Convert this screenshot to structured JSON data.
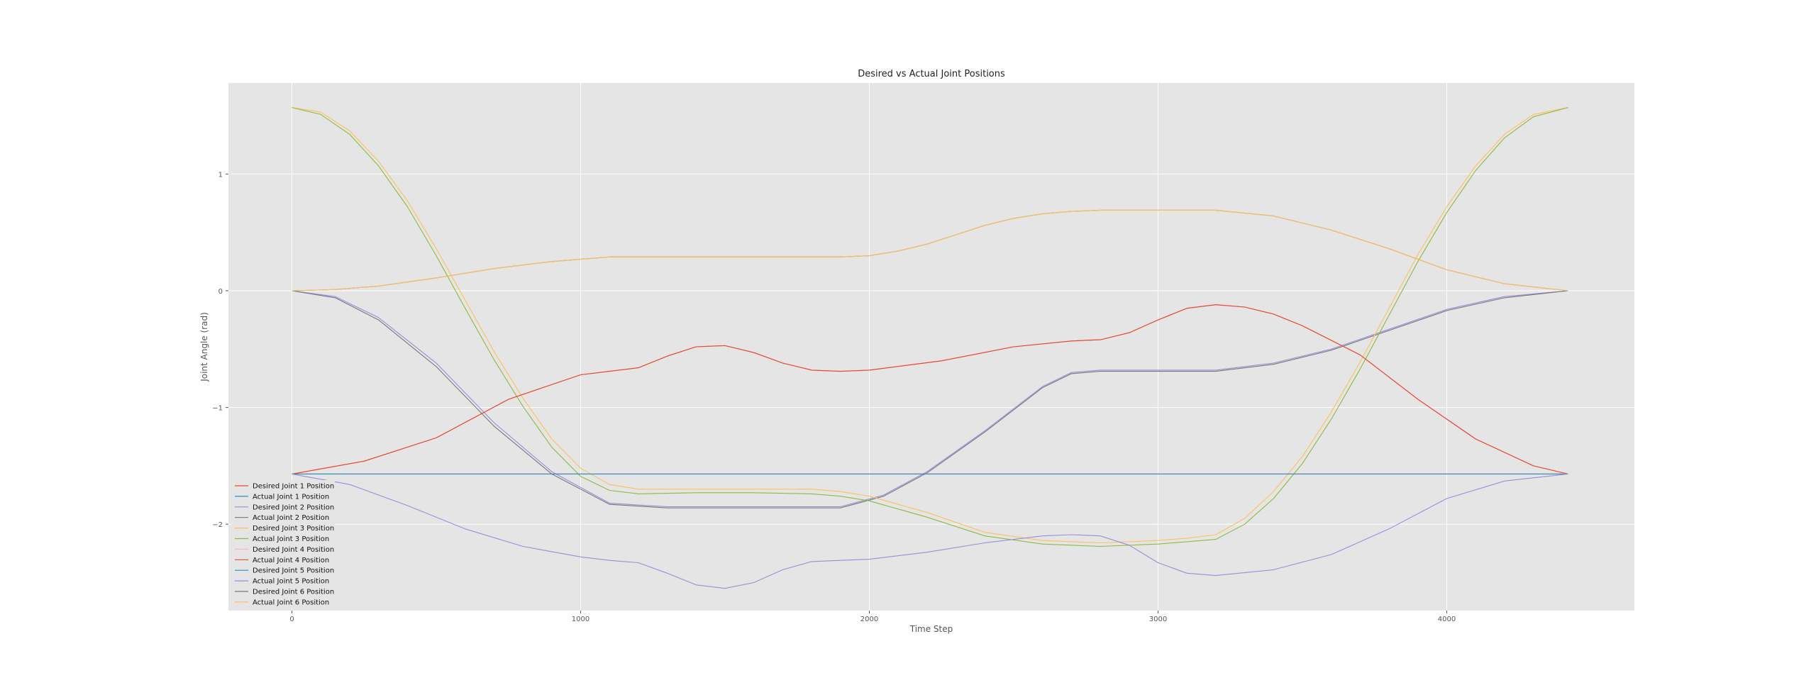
{
  "chart_data": {
    "type": "line",
    "title": "Desired vs Actual Joint Positions",
    "xlabel": "Time Step",
    "ylabel": "Joint Angle (rad)",
    "xlim": [
      -220,
      4650
    ],
    "ylim": [
      -2.74,
      1.78
    ],
    "xticks": [
      0,
      1000,
      2000,
      3000,
      4000
    ],
    "xtick_labels": [
      "0",
      "1000",
      "2000",
      "3000",
      "4000"
    ],
    "yticks": [
      -2,
      -1,
      0,
      1
    ],
    "ytick_labels": [
      "−2",
      "−1",
      "0",
      "1"
    ],
    "grid": true,
    "legend_position": "lower-left",
    "series": [
      {
        "name": "Desired Joint 1 Position",
        "color": "#E24A33",
        "width": 1.1,
        "x": [
          0,
          250,
          500,
          750,
          1000,
          1100,
          1200,
          1300,
          1400,
          1500,
          1600,
          1700,
          1800,
          1900,
          2000,
          2250,
          2500,
          2700,
          2800,
          2900,
          3000,
          3100,
          3200,
          3300,
          3400,
          3500,
          3700,
          3900,
          4100,
          4300,
          4420
        ],
        "y": [
          -1.57,
          -1.46,
          -1.26,
          -0.93,
          -0.72,
          -0.69,
          -0.66,
          -0.56,
          -0.48,
          -0.47,
          -0.53,
          -0.62,
          -0.68,
          -0.69,
          -0.68,
          -0.6,
          -0.48,
          -0.43,
          -0.42,
          -0.36,
          -0.25,
          -0.15,
          -0.12,
          -0.14,
          -0.2,
          -0.3,
          -0.55,
          -0.93,
          -1.27,
          -1.5,
          -1.57
        ]
      },
      {
        "name": "Actual Joint 1 Position",
        "color": "#348ABD",
        "width": 1.1,
        "x": [
          0,
          4420
        ],
        "y": [
          -1.57,
          -1.57
        ]
      },
      {
        "name": "Desired Joint 2 Position",
        "color": "#988ED5",
        "width": 1.1,
        "x": [
          0,
          150,
          300,
          500,
          700,
          900,
          1100,
          1300,
          1500,
          1700,
          1900,
          2050,
          2200,
          2400,
          2600,
          2700,
          2800,
          3000,
          3200,
          3400,
          3600,
          3800,
          4000,
          4200,
          4420
        ],
        "y": [
          0.0,
          -0.05,
          -0.23,
          -0.62,
          -1.13,
          -1.55,
          -1.82,
          -1.85,
          -1.85,
          -1.85,
          -1.85,
          -1.75,
          -1.55,
          -1.2,
          -0.82,
          -0.7,
          -0.68,
          -0.68,
          -0.68,
          -0.62,
          -0.5,
          -0.33,
          -0.16,
          -0.05,
          0.0
        ]
      },
      {
        "name": "Actual Joint 2 Position",
        "color": "#777777",
        "width": 1.1,
        "x": [
          0,
          150,
          300,
          500,
          700,
          900,
          1100,
          1300,
          1500,
          1700,
          1900,
          2050,
          2200,
          2400,
          2600,
          2700,
          2800,
          3000,
          3200,
          3400,
          3600,
          3800,
          4000,
          4200,
          4420
        ],
        "y": [
          0.0,
          -0.06,
          -0.25,
          -0.65,
          -1.16,
          -1.57,
          -1.83,
          -1.86,
          -1.86,
          -1.86,
          -1.86,
          -1.76,
          -1.56,
          -1.21,
          -0.83,
          -0.71,
          -0.69,
          -0.69,
          -0.69,
          -0.63,
          -0.51,
          -0.34,
          -0.17,
          -0.06,
          0.0
        ]
      },
      {
        "name": "Desired Joint 3 Position",
        "color": "#FBC15E",
        "width": 1.1,
        "x": [
          0,
          100,
          200,
          300,
          400,
          500,
          600,
          700,
          800,
          900,
          1000,
          1100,
          1200,
          1400,
          1600,
          1800,
          1900,
          2000,
          2200,
          2400,
          2600,
          2800,
          3000,
          3100,
          3200,
          3300,
          3400,
          3500,
          3600,
          3700,
          3800,
          3900,
          4000,
          4100,
          4200,
          4300,
          4420
        ],
        "y": [
          1.57,
          1.53,
          1.37,
          1.11,
          0.77,
          0.36,
          -0.08,
          -0.52,
          -0.92,
          -1.27,
          -1.52,
          -1.66,
          -1.7,
          -1.7,
          -1.7,
          -1.7,
          -1.72,
          -1.76,
          -1.9,
          -2.07,
          -2.14,
          -2.16,
          -2.14,
          -2.12,
          -2.09,
          -1.95,
          -1.72,
          -1.42,
          -1.04,
          -0.61,
          -0.15,
          0.31,
          0.72,
          1.07,
          1.34,
          1.51,
          1.57
        ]
      },
      {
        "name": "Actual Joint 3 Position",
        "color": "#8EBA42",
        "width": 1.1,
        "x": [
          0,
          100,
          200,
          300,
          400,
          500,
          600,
          700,
          800,
          900,
          1000,
          1100,
          1200,
          1400,
          1600,
          1800,
          1900,
          2000,
          2200,
          2400,
          2600,
          2800,
          3000,
          3100,
          3200,
          3300,
          3400,
          3500,
          3600,
          3700,
          3800,
          3900,
          4000,
          4100,
          4200,
          4300,
          4420
        ],
        "y": [
          1.57,
          1.51,
          1.34,
          1.07,
          0.72,
          0.3,
          -0.15,
          -0.59,
          -0.99,
          -1.34,
          -1.59,
          -1.71,
          -1.74,
          -1.73,
          -1.73,
          -1.74,
          -1.76,
          -1.8,
          -1.94,
          -2.1,
          -2.17,
          -2.19,
          -2.17,
          -2.15,
          -2.13,
          -2.0,
          -1.78,
          -1.48,
          -1.1,
          -0.67,
          -0.21,
          0.25,
          0.67,
          1.03,
          1.31,
          1.49,
          1.57
        ]
      },
      {
        "name": "Desired Joint 4 Position",
        "color": "#FFB5B8",
        "width": 1.1,
        "x": [
          0,
          250,
          500,
          750,
          1000,
          1100,
          1200,
          1300,
          1400,
          1500,
          1600,
          1700,
          1800,
          1900,
          2000,
          2250,
          2500,
          2700,
          2800,
          2900,
          3000,
          3100,
          3200,
          3300,
          3400,
          3500,
          3700,
          3900,
          4100,
          4300,
          4420
        ],
        "y": [
          -1.57,
          -1.46,
          -1.26,
          -0.93,
          -0.72,
          -0.69,
          -0.66,
          -0.56,
          -0.48,
          -0.47,
          -0.53,
          -0.62,
          -0.68,
          -0.69,
          -0.68,
          -0.6,
          -0.48,
          -0.43,
          -0.42,
          -0.36,
          -0.25,
          -0.15,
          -0.12,
          -0.14,
          -0.2,
          -0.3,
          -0.55,
          -0.93,
          -1.27,
          -1.5,
          -1.57
        ]
      },
      {
        "name": "Actual Joint 4 Position",
        "color": "#E24A33",
        "width": 1.1,
        "x": [
          0,
          250,
          500,
          750,
          1000,
          1100,
          1200,
          1300,
          1400,
          1500,
          1600,
          1700,
          1800,
          1900,
          2000,
          2250,
          2500,
          2700,
          2800,
          2900,
          3000,
          3100,
          3200,
          3300,
          3400,
          3500,
          3700,
          3900,
          4100,
          4300,
          4420
        ],
        "y": [
          -1.57,
          -1.46,
          -1.26,
          -0.93,
          -0.72,
          -0.69,
          -0.66,
          -0.56,
          -0.48,
          -0.47,
          -0.53,
          -0.62,
          -0.68,
          -0.69,
          -0.68,
          -0.6,
          -0.48,
          -0.43,
          -0.42,
          -0.36,
          -0.25,
          -0.15,
          -0.12,
          -0.14,
          -0.2,
          -0.3,
          -0.55,
          -0.93,
          -1.27,
          -1.5,
          -1.57
        ]
      },
      {
        "name": "Desired Joint 5 Position",
        "color": "#348ABD",
        "width": 1.1,
        "x": [
          0,
          4420
        ],
        "y": [
          -1.57,
          -1.57
        ]
      },
      {
        "name": "Actual Joint 5 Position",
        "color": "#988ED5",
        "width": 1.1,
        "x": [
          0,
          200,
          400,
          600,
          800,
          1000,
          1100,
          1200,
          1300,
          1400,
          1500,
          1600,
          1700,
          1800,
          1900,
          2000,
          2200,
          2400,
          2600,
          2700,
          2800,
          2900,
          3000,
          3100,
          3200,
          3400,
          3600,
          3800,
          4000,
          4200,
          4420
        ],
        "y": [
          -1.57,
          -1.66,
          -1.84,
          -2.04,
          -2.19,
          -2.28,
          -2.31,
          -2.33,
          -2.42,
          -2.52,
          -2.55,
          -2.5,
          -2.39,
          -2.32,
          -2.31,
          -2.3,
          -2.24,
          -2.16,
          -2.1,
          -2.09,
          -2.1,
          -2.18,
          -2.33,
          -2.42,
          -2.44,
          -2.39,
          -2.26,
          -2.04,
          -1.78,
          -1.63,
          -1.57
        ]
      },
      {
        "name": "Desired Joint 6 Position",
        "color": "#777777",
        "width": 1.1,
        "x": [
          0,
          150,
          300,
          500,
          700,
          900,
          1100,
          1300,
          1500,
          1700,
          1900,
          2000,
          2100,
          2200,
          2300,
          2400,
          2500,
          2600,
          2700,
          2800,
          3000,
          3200,
          3400,
          3600,
          3800,
          4000,
          4200,
          4420
        ],
        "y": [
          0.0,
          0.01,
          0.04,
          0.11,
          0.19,
          0.25,
          0.29,
          0.29,
          0.29,
          0.29,
          0.29,
          0.3,
          0.34,
          0.4,
          0.48,
          0.56,
          0.62,
          0.66,
          0.68,
          0.69,
          0.69,
          0.69,
          0.64,
          0.52,
          0.36,
          0.18,
          0.06,
          0.0
        ]
      },
      {
        "name": "Actual Joint 6 Position",
        "color": "#FBC15E",
        "width": 1.1,
        "x": [
          0,
          150,
          300,
          500,
          700,
          900,
          1100,
          1300,
          1500,
          1700,
          1900,
          2000,
          2100,
          2200,
          2300,
          2400,
          2500,
          2600,
          2700,
          2800,
          3000,
          3200,
          3400,
          3600,
          3800,
          4000,
          4200,
          4420
        ],
        "y": [
          0.0,
          0.01,
          0.04,
          0.11,
          0.19,
          0.25,
          0.29,
          0.29,
          0.29,
          0.29,
          0.29,
          0.3,
          0.34,
          0.4,
          0.48,
          0.56,
          0.62,
          0.66,
          0.68,
          0.69,
          0.69,
          0.69,
          0.64,
          0.52,
          0.36,
          0.18,
          0.06,
          0.0
        ]
      }
    ]
  }
}
